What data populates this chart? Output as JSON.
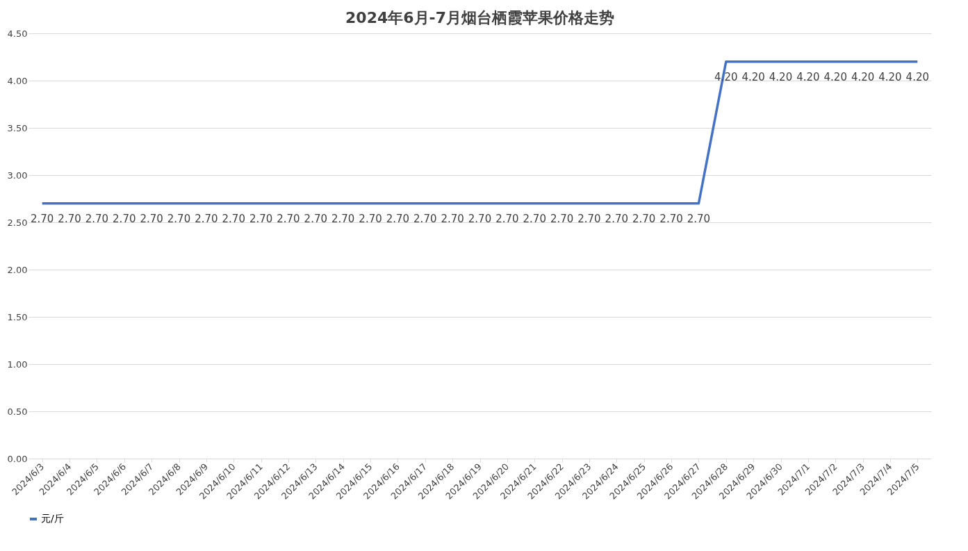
{
  "chart_data": {
    "type": "line",
    "title": "2024年6月-7月烟台栖霞苹果价格走势",
    "categories": [
      "2024/6/3",
      "2024/6/4",
      "2024/6/5",
      "2024/6/6",
      "2024/6/7",
      "2024/6/8",
      "2024/6/9",
      "2024/6/10",
      "2024/6/11",
      "2024/6/12",
      "2024/6/13",
      "2024/6/14",
      "2024/6/15",
      "2024/6/16",
      "2024/6/17",
      "2024/6/18",
      "2024/6/19",
      "2024/6/20",
      "2024/6/21",
      "2024/6/22",
      "2024/6/23",
      "2024/6/24",
      "2024/6/25",
      "2024/6/26",
      "2024/6/27",
      "2024/6/28",
      "2024/6/29",
      "2024/6/30",
      "2024/7/1",
      "2024/7/2",
      "2024/7/3",
      "2024/7/4",
      "2024/7/5"
    ],
    "series": [
      {
        "name": "元/斤",
        "color": "#4472c4",
        "values": [
          2.7,
          2.7,
          2.7,
          2.7,
          2.7,
          2.7,
          2.7,
          2.7,
          2.7,
          2.7,
          2.7,
          2.7,
          2.7,
          2.7,
          2.7,
          2.7,
          2.7,
          2.7,
          2.7,
          2.7,
          2.7,
          2.7,
          2.7,
          2.7,
          2.7,
          4.2,
          4.2,
          4.2,
          4.2,
          4.2,
          4.2,
          4.2,
          4.2
        ],
        "value_labels": [
          "2.70",
          "2.70",
          "2.70",
          "2.70",
          "2.70",
          "2.70",
          "2.70",
          "2.70",
          "2.70",
          "2.70",
          "2.70",
          "2.70",
          "2.70",
          "2.70",
          "2.70",
          "2.70",
          "2.70",
          "2.70",
          "2.70",
          "2.70",
          "2.70",
          "2.70",
          "2.70",
          "2.70",
          "2.70",
          "4.20",
          "4.20",
          "4.20",
          "4.20",
          "4.20",
          "4.20",
          "4.20",
          "4.20"
        ]
      }
    ],
    "ylim": [
      0,
      4.5
    ],
    "yticks": [
      {
        "value": 0,
        "label": "0.00"
      },
      {
        "value": 0.5,
        "label": "0.50"
      },
      {
        "value": 1,
        "label": "1.00"
      },
      {
        "value": 1.5,
        "label": "1.50"
      },
      {
        "value": 2,
        "label": "2.00"
      },
      {
        "value": 2.5,
        "label": "2.50"
      },
      {
        "value": 3,
        "label": "3.00"
      },
      {
        "value": 3.5,
        "label": "3.50"
      },
      {
        "value": 4,
        "label": "4.00"
      },
      {
        "value": 4.5,
        "label": "4.50"
      }
    ],
    "grid": "y",
    "legend": "bottom",
    "marker": "none",
    "line_style": "solid"
  }
}
